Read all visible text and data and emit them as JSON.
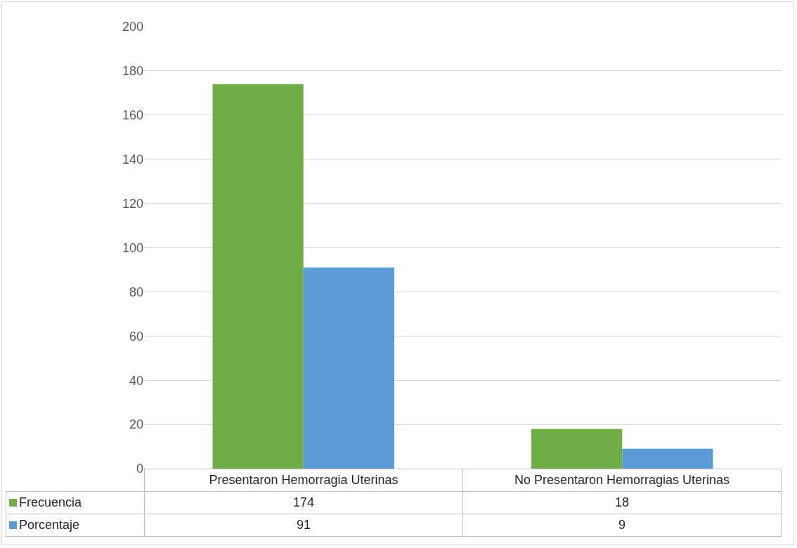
{
  "chart_data": {
    "type": "bar",
    "categories": [
      "Presentaron Hemorragia Uterinas",
      "No Presentaron Hemorragias Uterinas"
    ],
    "series": [
      {
        "name": "Frecuencia",
        "color": "#70ad47",
        "values": [
          174,
          18
        ]
      },
      {
        "name": "Porcentaje",
        "color": "#5b9bd5",
        "values": [
          91,
          9
        ]
      }
    ],
    "ylim": [
      0,
      200
    ],
    "yticks": [
      0,
      20,
      40,
      60,
      80,
      100,
      120,
      140,
      160,
      180,
      200
    ],
    "grid": "y",
    "legend": "bottom",
    "data_labels": true
  }
}
